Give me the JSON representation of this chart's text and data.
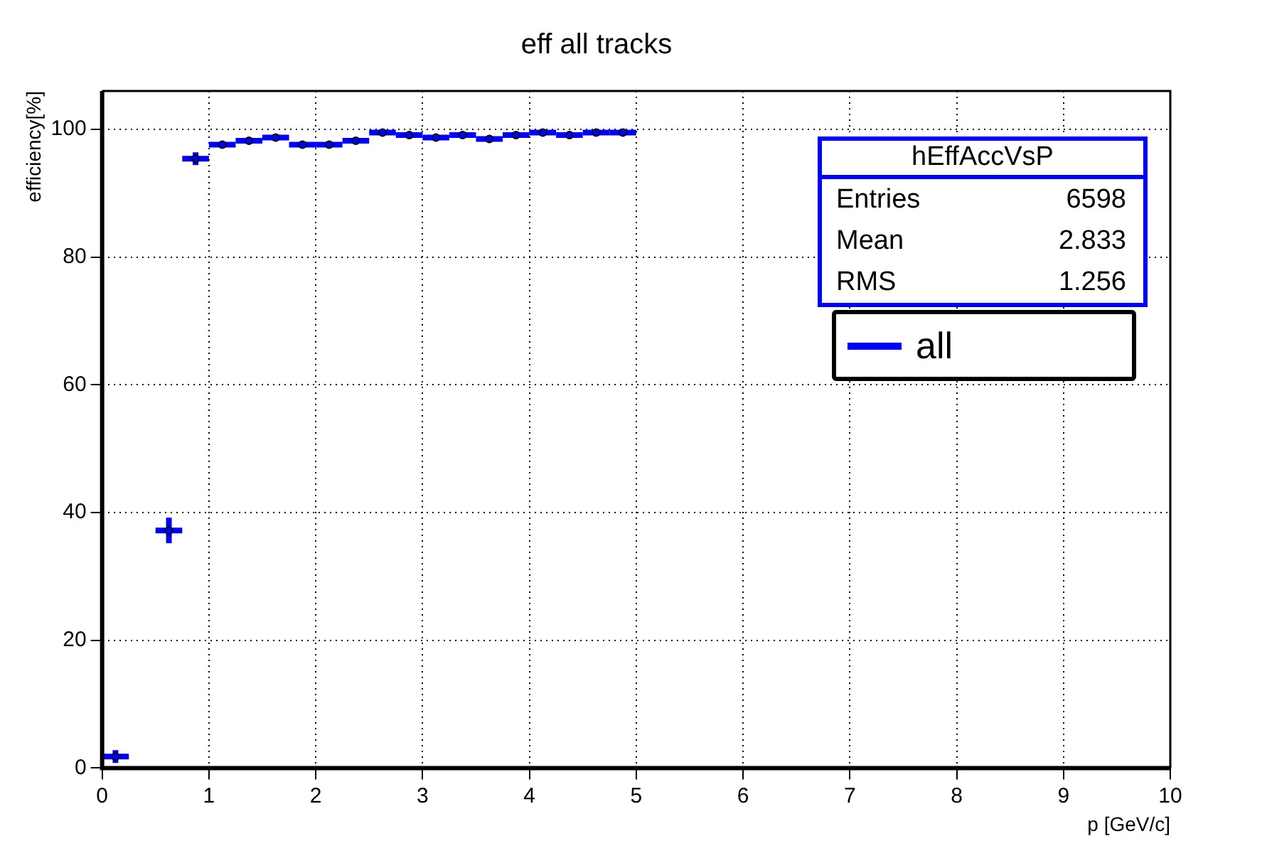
{
  "chart_data": {
    "type": "scatter",
    "title": "eff all tracks",
    "xlabel": "p [GeV/c]",
    "ylabel": "efficiency[%]",
    "x": [
      0.125,
      0.625,
      0.875,
      1.125,
      1.375,
      1.625,
      1.875,
      2.125,
      2.375,
      2.625,
      2.875,
      3.125,
      3.375,
      3.625,
      3.875,
      4.125,
      4.375,
      4.625,
      4.875
    ],
    "series": [
      {
        "name": "all",
        "color": "#0000ff",
        "values": [
          1.8,
          37.2,
          95.4,
          97.6,
          98.2,
          98.7,
          97.6,
          97.6,
          98.2,
          99.5,
          99.1,
          98.7,
          99.1,
          98.5,
          99.1,
          99.5,
          99.1,
          99.5,
          99.5
        ],
        "errors": [
          1,
          2,
          1,
          0.5,
          0.5,
          0.5,
          0.5,
          0.5,
          0.5,
          0.5,
          0.5,
          0.5,
          0.5,
          0.5,
          0.5,
          0.5,
          0.5,
          0.5,
          0.5
        ],
        "xerrors": [
          0.125,
          0.125,
          0.125,
          0.125,
          0.125,
          0.125,
          0.125,
          0.125,
          0.125,
          0.125,
          0.125,
          0.125,
          0.125,
          0.125,
          0.125,
          0.125,
          0.125,
          0.125,
          0.125
        ]
      }
    ],
    "xlim": [
      0,
      10
    ],
    "xticks": [
      0,
      1,
      2,
      3,
      4,
      5,
      6,
      7,
      8,
      9,
      10
    ],
    "ylim": [
      0,
      106
    ],
    "yticks": [
      0,
      20,
      40,
      60,
      80,
      100
    ],
    "grid": true,
    "legend": "top right",
    "marker": "circle",
    "annotations": [
      "hEffAccVsP",
      "Entries 6598",
      "Mean 2.833",
      "RMS 1.256"
    ]
  }
}
